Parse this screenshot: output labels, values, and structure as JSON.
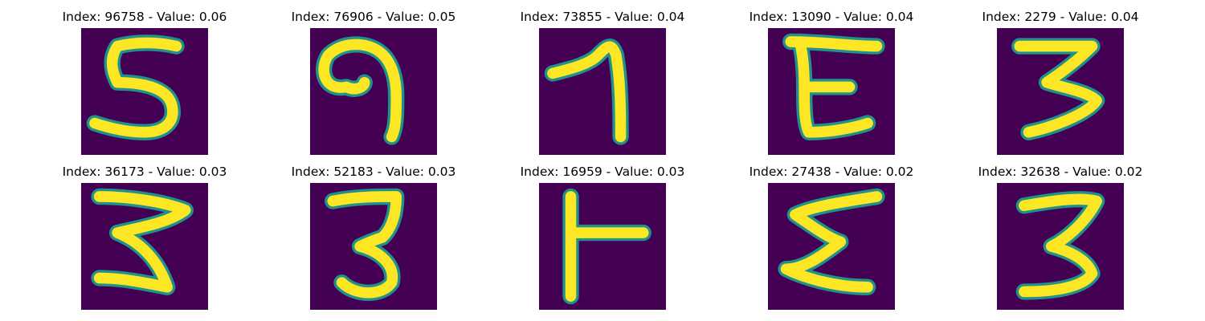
{
  "colors": {
    "background": "#440154",
    "stroke_core": "#fde725",
    "stroke_edge": "#21918c"
  },
  "panels": [
    {
      "title": "Index: 96758 - Value: 0.06"
    },
    {
      "title": "Index: 76906 - Value: 0.05"
    },
    {
      "title": "Index: 73855 - Value: 0.04"
    },
    {
      "title": "Index: 13090 - Value: 0.04"
    },
    {
      "title": "Index: 2279 - Value: 0.04"
    },
    {
      "title": "Index: 36173 - Value: 0.03"
    },
    {
      "title": "Index: 52183 - Value: 0.03"
    },
    {
      "title": "Index: 16959 - Value: 0.03"
    },
    {
      "title": "Index: 27438 - Value: 0.02"
    },
    {
      "title": "Index: 32638 - Value: 0.02"
    }
  ]
}
